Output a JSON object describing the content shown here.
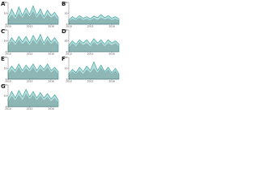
{
  "chart_data": [
    {
      "type": "area",
      "title": "A",
      "x": [
        2010,
        2010.5,
        2011,
        2011.5,
        2012,
        2012.5,
        2013,
        2013.5,
        2014,
        2014.5,
        2015,
        2015.5,
        2016,
        2016.5,
        2017
      ],
      "xlim": [
        2010,
        2017
      ],
      "xticks": [
        2010,
        2013,
        2016
      ],
      "ylim": [
        0,
        100
      ],
      "yticks": [
        0,
        50,
        100
      ],
      "series": [
        {
          "color": "#c4c4c4",
          "values": [
            20,
            45,
            25,
            50,
            30,
            55,
            35,
            60,
            30,
            50,
            25,
            45,
            30,
            40,
            20
          ]
        },
        {
          "color": "#2a9d9a",
          "values": [
            30,
            70,
            35,
            80,
            40,
            75,
            45,
            85,
            40,
            70,
            35,
            65,
            40,
            55,
            30
          ]
        }
      ]
    },
    {
      "type": "area",
      "title": "B",
      "x": [
        2010,
        2010.5,
        2011,
        2011.5,
        2012,
        2012.5,
        2013,
        2013.5,
        2014,
        2014.5,
        2015,
        2015.5,
        2016,
        2016.5,
        2017
      ],
      "xlim": [
        2010,
        2017
      ],
      "xticks": [
        2010,
        2013,
        2016
      ],
      "ylim": [
        0,
        100
      ],
      "yticks": [
        0,
        50,
        100
      ],
      "series": [
        {
          "color": "#c4c4c4",
          "values": [
            15,
            25,
            20,
            30,
            20,
            25,
            18,
            28,
            20,
            30,
            22,
            28,
            20,
            25,
            18
          ]
        },
        {
          "color": "#2a9d9a",
          "values": [
            20,
            35,
            25,
            40,
            28,
            35,
            25,
            38,
            30,
            45,
            30,
            40,
            28,
            35,
            25
          ]
        }
      ]
    },
    {
      "type": "area",
      "title": "C",
      "x": [
        2010,
        2010.5,
        2011,
        2011.5,
        2012,
        2012.5,
        2013,
        2013.5,
        2014,
        2014.5,
        2015,
        2015.5,
        2016,
        2016.5,
        2017
      ],
      "xlim": [
        2010,
        2017
      ],
      "xticks": [
        2010,
        2013,
        2016
      ],
      "ylim": [
        0,
        100
      ],
      "yticks": [
        0,
        50,
        100
      ],
      "series": [
        {
          "color": "#c4c4c4",
          "values": [
            25,
            50,
            30,
            55,
            35,
            50,
            30,
            55,
            35,
            60,
            30,
            55,
            35,
            50,
            30
          ]
        },
        {
          "color": "#2a9d9a",
          "values": [
            35,
            65,
            40,
            70,
            45,
            70,
            40,
            75,
            45,
            80,
            40,
            70,
            45,
            65,
            40
          ]
        }
      ]
    },
    {
      "type": "area",
      "title": "D",
      "x": [
        2010,
        2010.5,
        2011,
        2011.5,
        2012,
        2012.5,
        2013,
        2013.5,
        2014,
        2014.5,
        2015,
        2015.5,
        2016,
        2016.5,
        2017
      ],
      "xlim": [
        2010,
        2017
      ],
      "xticks": [
        2010,
        2013,
        2016
      ],
      "ylim": [
        0,
        100
      ],
      "yticks": [
        0,
        50,
        100
      ],
      "series": [
        {
          "color": "#c4c4c4",
          "values": [
            20,
            40,
            25,
            45,
            30,
            40,
            25,
            45,
            30,
            45,
            25,
            40,
            30,
            40,
            25
          ]
        },
        {
          "color": "#2a9d9a",
          "values": [
            30,
            50,
            35,
            55,
            40,
            55,
            35,
            60,
            40,
            55,
            35,
            55,
            40,
            50,
            35
          ]
        }
      ]
    },
    {
      "type": "area",
      "title": "E",
      "x": [
        2010,
        2010.5,
        2011,
        2011.5,
        2012,
        2012.5,
        2013,
        2013.5,
        2014,
        2014.5,
        2015,
        2015.5,
        2016,
        2016.5,
        2017
      ],
      "xlim": [
        2010,
        2017
      ],
      "xticks": [
        2010,
        2013,
        2016
      ],
      "ylim": [
        0,
        100
      ],
      "yticks": [
        0,
        50,
        100
      ],
      "series": [
        {
          "color": "#c4c4c4",
          "values": [
            25,
            45,
            30,
            55,
            30,
            50,
            35,
            55,
            30,
            50,
            35,
            55,
            30,
            45,
            25
          ]
        },
        {
          "color": "#2a9d9a",
          "values": [
            35,
            60,
            40,
            70,
            40,
            65,
            45,
            70,
            40,
            65,
            45,
            70,
            40,
            55,
            35
          ]
        }
      ]
    },
    {
      "type": "area",
      "title": "F",
      "x": [
        2010,
        2010.5,
        2011,
        2011.5,
        2012,
        2012.5,
        2013,
        2013.5,
        2014,
        2014.5,
        2015,
        2015.5,
        2016,
        2016.5,
        2017
      ],
      "xlim": [
        2010,
        2017
      ],
      "xticks": [
        2010,
        2013,
        2016
      ],
      "ylim": [
        0,
        100
      ],
      "yticks": [
        0,
        50,
        100
      ],
      "series": [
        {
          "color": "#c4c4c4",
          "values": [
            20,
            35,
            25,
            40,
            25,
            45,
            30,
            50,
            30,
            55,
            30,
            45,
            25,
            40,
            20
          ]
        },
        {
          "color": "#2a9d9a",
          "values": [
            25,
            45,
            30,
            55,
            35,
            60,
            40,
            80,
            40,
            65,
            35,
            55,
            30,
            50,
            25
          ]
        }
      ]
    },
    {
      "type": "area",
      "title": "G",
      "x": [
        2010,
        2010.5,
        2011,
        2011.5,
        2012,
        2012.5,
        2013,
        2013.5,
        2014,
        2014.5,
        2015,
        2015.5,
        2016,
        2016.5,
        2017
      ],
      "xlim": [
        2010,
        2017
      ],
      "xticks": [
        2010,
        2013,
        2016
      ],
      "ylim": [
        0,
        100
      ],
      "yticks": [
        0,
        50,
        100
      ],
      "series": [
        {
          "color": "#c4c4c4",
          "values": [
            25,
            50,
            30,
            55,
            30,
            60,
            35,
            55,
            30,
            50,
            30,
            45,
            25,
            40,
            20
          ]
        },
        {
          "color": "#2a9d9a",
          "values": [
            35,
            70,
            40,
            75,
            45,
            80,
            45,
            70,
            40,
            65,
            40,
            60,
            35,
            55,
            30
          ]
        }
      ]
    }
  ]
}
